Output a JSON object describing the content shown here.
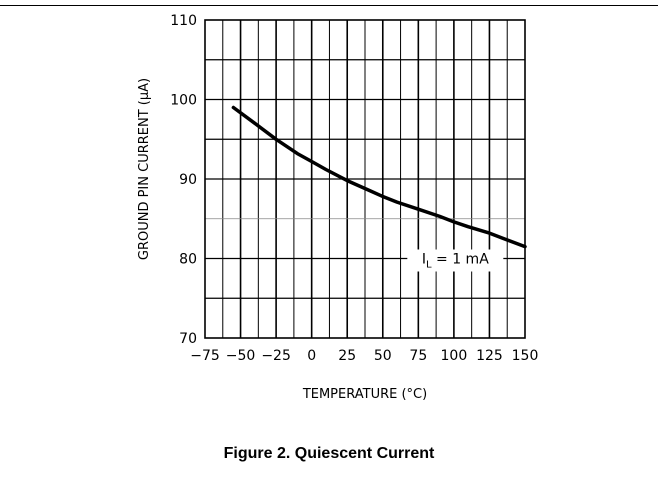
{
  "caption": "Figure 2. Quiescent Current",
  "chart_data": {
    "type": "line",
    "xlabel": "TEMPERATURE (°C)",
    "ylabel": "GROUND PIN CURRENT (μA)",
    "xlim": [
      -75,
      150
    ],
    "ylim": [
      70,
      110
    ],
    "x_ticks": [
      "-75",
      "-50",
      "-25",
      "0",
      "25",
      "50",
      "75",
      "100",
      "125",
      "150"
    ],
    "y_ticks": [
      "70",
      "80",
      "90",
      "100",
      "110"
    ],
    "grid": true,
    "series": [
      {
        "name": "IL = 1 mA",
        "x": [
          -55,
          -40,
          -25,
          -10,
          0,
          10,
          25,
          40,
          50,
          60,
          75,
          90,
          100,
          110,
          125,
          135,
          150
        ],
        "y": [
          99,
          97,
          95,
          93.2,
          92.2,
          91.2,
          89.8,
          88.6,
          87.8,
          87.1,
          86.2,
          85.3,
          84.6,
          84.0,
          83.2,
          82.5,
          81.5
        ]
      }
    ],
    "annotation": {
      "text_main": "I",
      "text_sub": "L",
      "text_rest": " = 1 mA"
    },
    "colors": {
      "line": "#000000",
      "grid": "#000000",
      "background": "#ffffff"
    }
  }
}
